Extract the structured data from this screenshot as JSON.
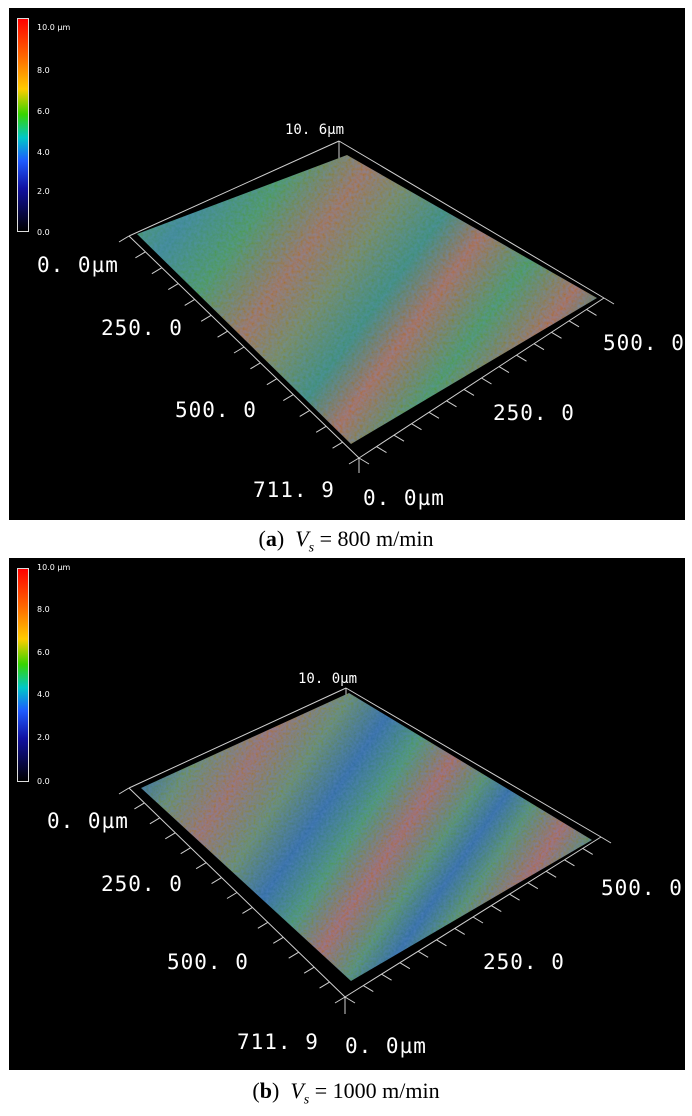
{
  "panels": [
    {
      "scale": {
        "t10": "10.0 µm",
        "t8": "8.0",
        "t6": "6.0",
        "t4": "4.0",
        "t2": "2.0",
        "t0": "0.0"
      },
      "z_top": "10. 6µm",
      "y_start": "0. 0µm",
      "y_mid": "250. 0",
      "y_mid2": "500. 0",
      "y_end": "711. 9",
      "x_start": "0. 0µm",
      "x_mid": "250. 0",
      "x_end": "500. 0",
      "caption": {
        "letter": "a",
        "open": "(",
        "close": ")",
        "var": "V",
        "sub": "s",
        "rest": " = 800 m/min"
      }
    },
    {
      "scale": {
        "t10": "10.0 µm",
        "t8": "8.0",
        "t6": "6.0",
        "t4": "4.0",
        "t2": "2.0",
        "t0": "0.0"
      },
      "z_top": "10. 0µm",
      "y_start": "0. 0µm",
      "y_mid": "250. 0",
      "y_mid2": "500. 0",
      "y_end": "711. 9",
      "x_start": "0. 0µm",
      "x_mid": "250. 0",
      "x_end": "500. 0",
      "caption": {
        "letter": "b",
        "open": "(",
        "close": ")",
        "var": "V",
        "sub": "s",
        "rest": " = 1000 m/min"
      }
    }
  ],
  "colors": {
    "background": "#000000",
    "band_high": "#b5722a",
    "band_mid": "#4e9a3c",
    "band_low": "#2f6d9a"
  }
}
